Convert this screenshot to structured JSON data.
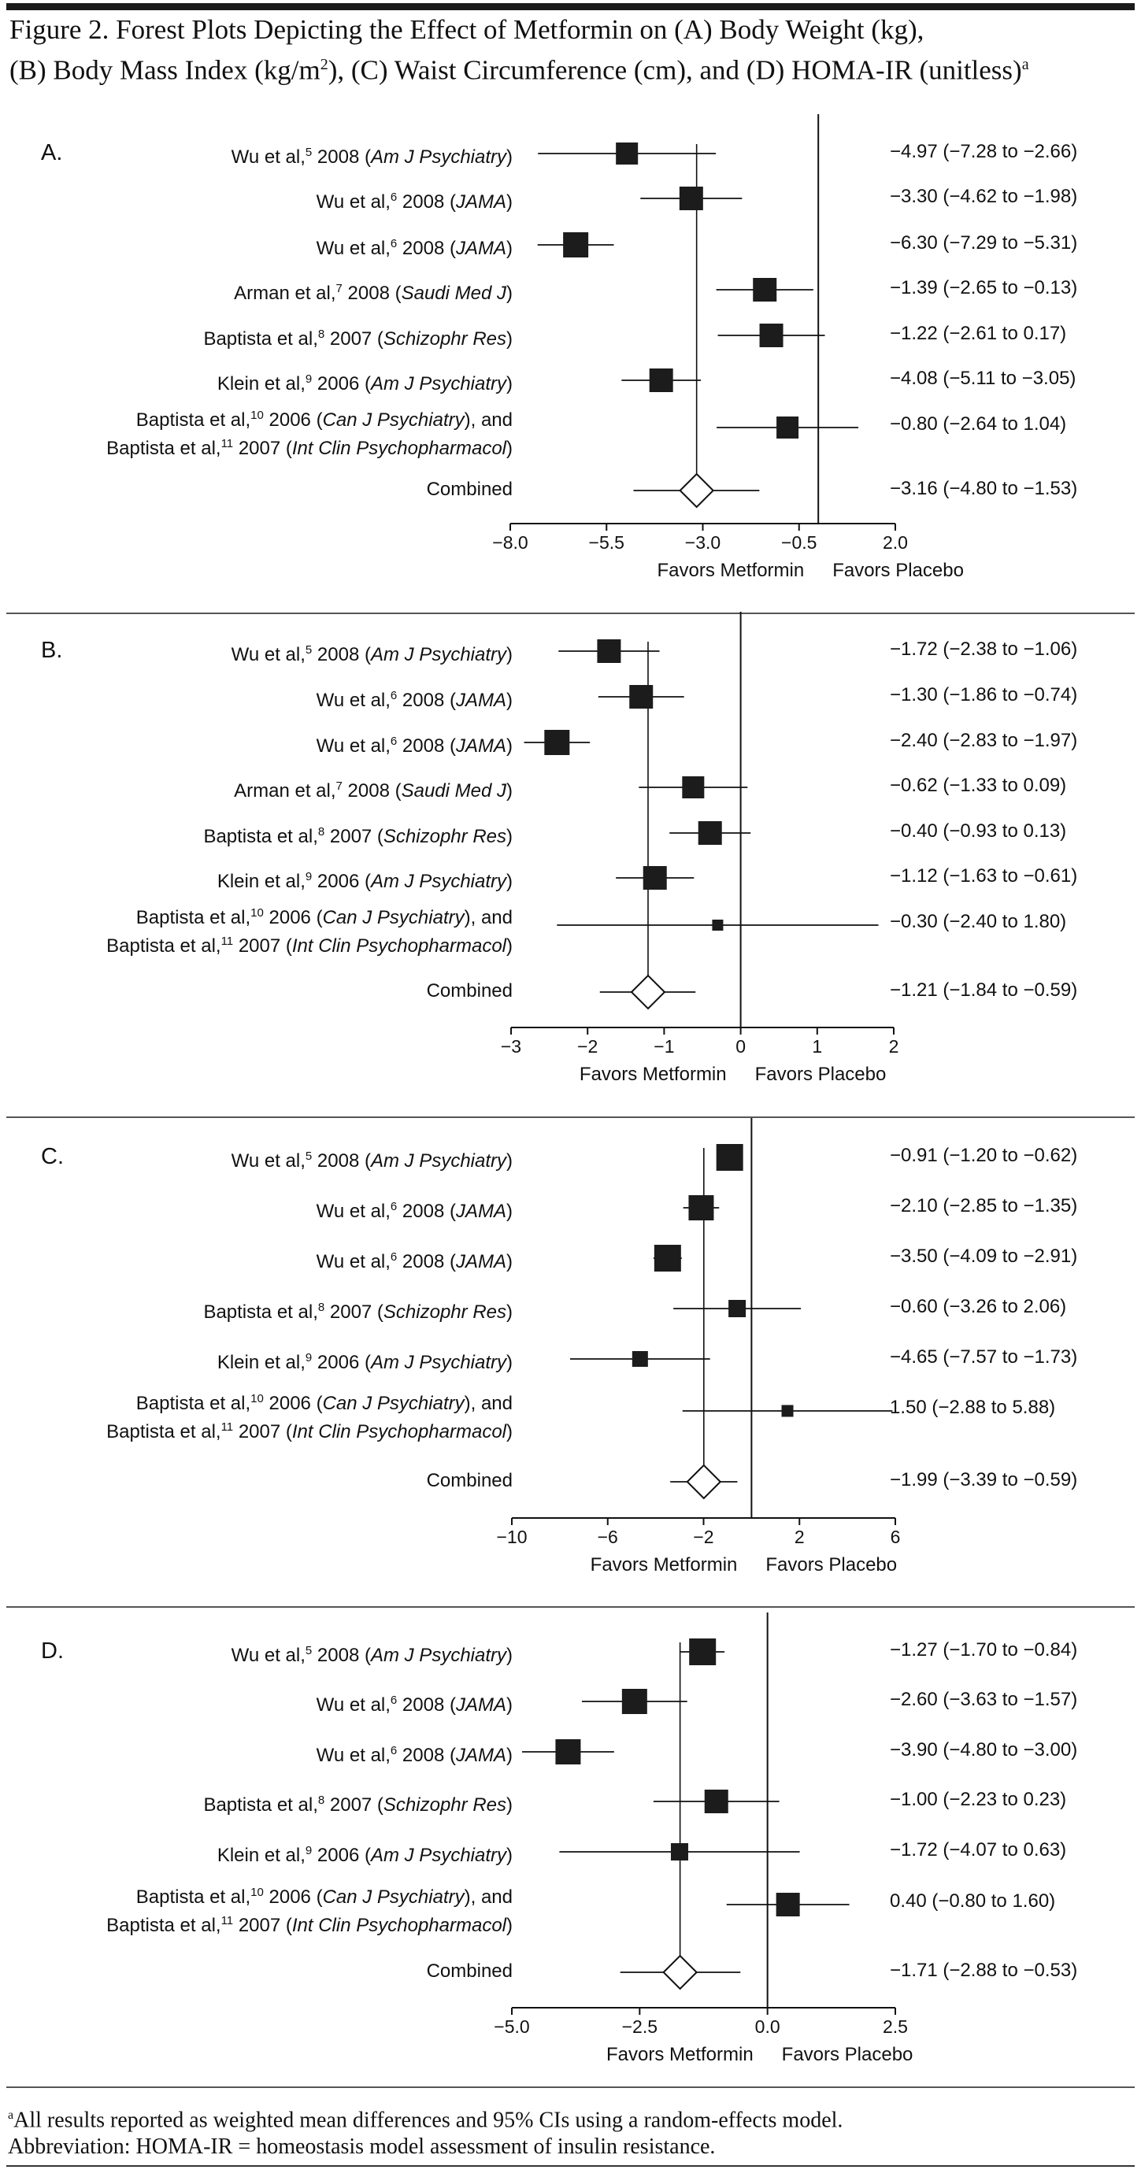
{
  "title": {
    "line1": "Figure 2. Forest Plots Depicting the Effect of Metformin on (A) Body Weight (kg),",
    "line2_pre": "(B) Body Mass Index (kg/m",
    "line2_sup": "2",
    "line2_post": "), (C) Waist Circumference (cm), and (D) HOMA-IR (unitless)",
    "line2_note": "a"
  },
  "chart_data": [
    {
      "type": "forest",
      "panel": "A.",
      "xlim": [
        -8.0,
        2.0
      ],
      "ticks": [
        "−8.0",
        "−5.5",
        "−3.0",
        "−0.5",
        "2.0"
      ],
      "tick_values": [
        -8.0,
        -5.5,
        -3.0,
        -0.5,
        2.0
      ],
      "null_line": 0,
      "favors_left": "Favors Metformin",
      "favors_right": "Favors Placebo",
      "studies": [
        {
          "pre": "Wu et al,",
          "ref": "5",
          "year": " 2008 (",
          "journal": "Am J Psychiatry",
          "post": ")",
          "est": -4.97,
          "lo": -7.28,
          "hi": -2.66,
          "label": "−4.97 (−7.28 to −2.66)",
          "size": 28
        },
        {
          "pre": "Wu et al,",
          "ref": "6",
          "year": " 2008 (",
          "journal": "JAMA",
          "post": ")",
          "est": -3.3,
          "lo": -4.62,
          "hi": -1.98,
          "label": "−3.30 (−4.62 to −1.98)",
          "size": 30
        },
        {
          "pre": "Wu et al,",
          "ref": "6",
          "year": " 2008 (",
          "journal": "JAMA",
          "post": ")",
          "est": -6.3,
          "lo": -7.29,
          "hi": -5.31,
          "label": "−6.30 (−7.29 to −5.31)",
          "size": 32
        },
        {
          "pre": "Arman et al,",
          "ref": "7",
          "year": " 2008 (",
          "journal": "Saudi Med J",
          "post": ")",
          "est": -1.39,
          "lo": -2.65,
          "hi": -0.13,
          "label": "−1.39 (−2.65 to −0.13)",
          "size": 30
        },
        {
          "pre": "Baptista et al,",
          "ref": "8",
          "year": " 2007 (",
          "journal": "Schizophr Res",
          "post": ")",
          "est": -1.22,
          "lo": -2.61,
          "hi": 0.17,
          "label": "−1.22 (−2.61 to 0.17)",
          "size": 30
        },
        {
          "pre": "Klein et al,",
          "ref": "9",
          "year": " 2006 (",
          "journal": "Am J Psychiatry",
          "post": ")",
          "est": -4.08,
          "lo": -5.11,
          "hi": -3.05,
          "label": "−4.08 (−5.11 to −3.05)",
          "size": 30
        },
        {
          "pre": "Baptista et al,",
          "ref": "10",
          "year": " 2006 (",
          "journal": "Can J Psychiatry",
          "post": "), and",
          "pre2": "Baptista et al,",
          "ref2": "11",
          "year2": " 2007 (",
          "journal2": "Int Clin Psychopharmacol",
          "post2": ")",
          "est": -0.8,
          "lo": -2.64,
          "hi": 1.04,
          "label": "−0.80 (−2.64 to 1.04)",
          "size": 28
        }
      ],
      "combined": {
        "label_text": "Combined",
        "est": -3.16,
        "lo": -4.8,
        "hi": -1.53,
        "label": "−3.16 (−4.80 to −1.53)"
      }
    },
    {
      "type": "forest",
      "panel": "B.",
      "xlim": [
        -3,
        2
      ],
      "ticks": [
        "−3",
        "−2",
        "−1",
        "0",
        "1",
        "2"
      ],
      "tick_values": [
        -3,
        -2,
        -1,
        0,
        1,
        2
      ],
      "null_line": 0,
      "favors_left": "Favors Metformin",
      "favors_right": "Favors Placebo",
      "studies": [
        {
          "pre": "Wu et al,",
          "ref": "5",
          "year": " 2008 (",
          "journal": "Am J Psychiatry",
          "post": ")",
          "est": -1.72,
          "lo": -2.38,
          "hi": -1.06,
          "label": "−1.72 (−2.38 to −1.06)",
          "size": 30
        },
        {
          "pre": "Wu et al,",
          "ref": "6",
          "year": " 2008 (",
          "journal": "JAMA",
          "post": ")",
          "est": -1.3,
          "lo": -1.86,
          "hi": -0.74,
          "label": "−1.30 (−1.86 to −0.74)",
          "size": 30
        },
        {
          "pre": "Wu et al,",
          "ref": "6",
          "year": " 2008 (",
          "journal": "JAMA",
          "post": ")",
          "est": -2.4,
          "lo": -2.83,
          "hi": -1.97,
          "label": "−2.40 (−2.83 to −1.97)",
          "size": 32
        },
        {
          "pre": "Arman et al,",
          "ref": "7",
          "year": " 2008 (",
          "journal": "Saudi Med J",
          "post": ")",
          "est": -0.62,
          "lo": -1.33,
          "hi": 0.09,
          "label": "−0.62 (−1.33 to 0.09)",
          "size": 28
        },
        {
          "pre": "Baptista  et al,",
          "ref": "8",
          "year": " 2007 (",
          "journal": "Schizophr Res",
          "post": ")",
          "est": -0.4,
          "lo": -0.93,
          "hi": 0.13,
          "label": "−0.40 (−0.93 to 0.13)",
          "size": 30
        },
        {
          "pre": "Klein  et al,",
          "ref": "9",
          "year": " 2006 (",
          "journal": "Am J Psychiatry",
          "post": ")",
          "est": -1.12,
          "lo": -1.63,
          "hi": -0.61,
          "label": "−1.12 (−1.63 to −0.61)",
          "size": 30
        },
        {
          "pre": "Baptista et al,",
          "ref": "10",
          "year": " 2006 (",
          "journal": "Can J Psychiatry",
          "post": "), and",
          "pre2": "Baptista et al,",
          "ref2": "11",
          "year2": " 2007 (",
          "journal2": "Int Clin Psychopharmacol",
          "post2": ")",
          "est": -0.3,
          "lo": -2.4,
          "hi": 1.8,
          "label": "−0.30 (−2.40 to 1.80)",
          "size": 14
        }
      ],
      "combined": {
        "label_text": "Combined",
        "est": -1.21,
        "lo": -1.84,
        "hi": -0.59,
        "label": "−1.21 (−1.84 to −0.59)"
      }
    },
    {
      "type": "forest",
      "panel": "C.",
      "xlim": [
        -10,
        6
      ],
      "ticks": [
        "−10",
        "−6",
        "−2",
        "2",
        "6"
      ],
      "tick_values": [
        -10,
        -6,
        -2,
        2,
        6
      ],
      "null_line": 0,
      "favors_left": "Favors Metformin",
      "favors_right": "Favors Placebo",
      "studies": [
        {
          "pre": "Wu et al,",
          "ref": "5",
          "year": " 2008 (",
          "journal": "Am J Psychiatry",
          "post": ")",
          "est": -0.91,
          "lo": -1.2,
          "hi": -0.62,
          "label": "−0.91 (−1.20 to −0.62)",
          "size": 34
        },
        {
          "pre": "Wu et al,",
          "ref": "6",
          "year": " 2008 (",
          "journal": "JAMA",
          "post": ")",
          "est": -2.1,
          "lo": -2.85,
          "hi": -1.35,
          "label": "−2.10 (−2.85 to −1.35)",
          "size": 32
        },
        {
          "pre": "Wu et al,",
          "ref": "6",
          "year": " 2008 (",
          "journal": "JAMA",
          "post": ")",
          "est": -3.5,
          "lo": -4.09,
          "hi": -2.91,
          "label": "−3.50 (−4.09 to −2.91)",
          "size": 34
        },
        {
          "pre": "Baptista et al,",
          "ref": "8",
          "year": " 2007 (",
          "journal": "Schizophr Res",
          "post": ")",
          "est": -0.6,
          "lo": -3.26,
          "hi": 2.06,
          "label": "−0.60 (−3.26 to 2.06)",
          "size": 22
        },
        {
          "pre": "Klein et al,",
          "ref": "9",
          "year": " 2006 (",
          "journal": "Am J Psychiatry",
          "post": ")",
          "est": -4.65,
          "lo": -7.57,
          "hi": -1.73,
          "label": "−4.65 (−7.57 to −1.73)",
          "size": 20
        },
        {
          "pre": "Baptista et al,",
          "ref": "10",
          "year": " 2006 (",
          "journal": "Can J Psychiatry",
          "post": "), and",
          "pre2": "Baptista et al,",
          "ref2": "11",
          "year2": " 2007 (",
          "journal2": "Int Clin Psychopharmacol",
          "post2": ")",
          "est": 1.5,
          "lo": -2.88,
          "hi": 5.88,
          "label": "1.50 (−2.88 to 5.88)",
          "size": 15
        }
      ],
      "combined": {
        "label_text": "Combined",
        "est": -1.99,
        "lo": -3.39,
        "hi": -0.59,
        "label": "−1.99 (−3.39 to −0.59)"
      }
    },
    {
      "type": "forest",
      "panel": "D.",
      "xlim": [
        -5.0,
        2.5
      ],
      "ticks": [
        "−5.0",
        "−2.5",
        "0.0",
        "2.5"
      ],
      "tick_values": [
        -5.0,
        -2.5,
        0.0,
        2.5
      ],
      "null_line": 0,
      "favors_left": "Favors Metformin",
      "favors_right": "Favors Placebo",
      "studies": [
        {
          "pre": "Wu et al,",
          "ref": "5",
          "year": " 2008 (",
          "journal": "Am J Psychiatry",
          "post": ")",
          "est": -1.27,
          "lo": -1.7,
          "hi": -0.84,
          "label": "−1.27 (−1.70 to −0.84)",
          "size": 34
        },
        {
          "pre": "Wu et al,",
          "ref": "6",
          "year": " 2008 (",
          "journal": "JAMA",
          "post": ")",
          "est": -2.6,
          "lo": -3.63,
          "hi": -1.57,
          "label": "−2.60 (−3.63 to −1.57)",
          "size": 32
        },
        {
          "pre": "Wu et al,",
          "ref": "6",
          "year": " 2008 (",
          "journal": "JAMA",
          "post": ")",
          "est": -3.9,
          "lo": -4.8,
          "hi": -3.0,
          "label": "−3.90 (−4.80 to −3.00)",
          "size": 32
        },
        {
          "pre": "Baptista et al,",
          "ref": "8",
          "year": " 2007 (",
          "journal": "Schizophr Res",
          "post": ")",
          "est": -1.0,
          "lo": -2.23,
          "hi": 0.23,
          "label": "−1.00 (−2.23 to 0.23)",
          "size": 30
        },
        {
          "pre": "Klein et al,",
          "ref": "9",
          "year": " 2006 (",
          "journal": "Am J Psychiatry",
          "post": ")",
          "est": -1.72,
          "lo": -4.07,
          "hi": 0.63,
          "label": "−1.72 (−4.07 to 0.63)",
          "size": 22
        },
        {
          "pre": "Baptista et al,",
          "ref": "10",
          "year": " 2006 (",
          "journal": "Can J Psychiatry",
          "post": "), and",
          "pre2": "Baptista et al,",
          "ref2": "11",
          "year2": " 2007 (",
          "journal2": "Int Clin Psychopharmacol",
          "post2": ")",
          "est": 0.4,
          "lo": -0.8,
          "hi": 1.6,
          "label": "0.40 (−0.80 to 1.60)",
          "size": 30
        }
      ],
      "combined": {
        "label_text": "Combined",
        "est": -1.71,
        "lo": -2.88,
        "hi": -0.53,
        "label": "−1.71 (−2.88 to −0.53)"
      }
    }
  ],
  "footnote": {
    "note_mark": "a",
    "line1": "All results reported as weighted mean differences and 95% CIs using a random-effects model.",
    "line2": "Abbreviation: HOMA-IR = homeostasis model assessment of insulin resistance."
  }
}
